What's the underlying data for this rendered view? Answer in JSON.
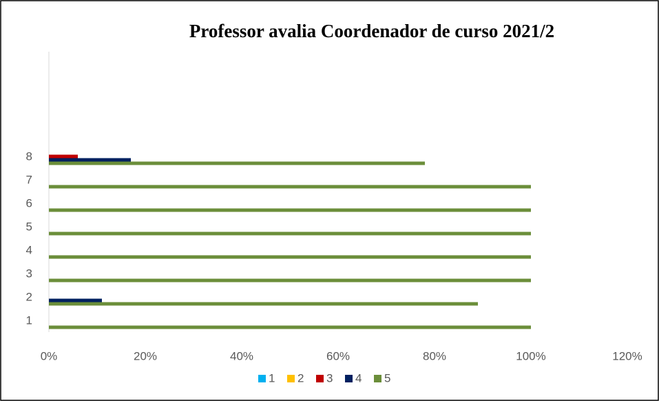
{
  "chart_data": {
    "type": "hbar",
    "title": "Professor avalia Coordenador de curso 2021/2",
    "categories": [
      "1",
      "2",
      "3",
      "4",
      "5",
      "6",
      "7",
      "8"
    ],
    "series": [
      {
        "name": "1",
        "color": "#00b0f0",
        "values": [
          0,
          0,
          0,
          0,
          0,
          0,
          0,
          0
        ]
      },
      {
        "name": "2",
        "color": "#ffc000",
        "values": [
          0,
          0,
          0,
          0,
          0,
          0,
          0,
          0
        ]
      },
      {
        "name": "3",
        "color": "#c00000",
        "values": [
          0,
          0,
          0,
          0,
          0,
          0,
          0,
          6
        ]
      },
      {
        "name": "4",
        "color": "#002060",
        "values": [
          0,
          11,
          0,
          0,
          0,
          0,
          0,
          17
        ]
      },
      {
        "name": "5",
        "color": "#6b8e3a",
        "values": [
          100,
          89,
          100,
          100,
          100,
          100,
          100,
          78
        ]
      }
    ],
    "xlim": [
      0,
      120
    ],
    "xticks": [
      {
        "value": 0,
        "label": "0%"
      },
      {
        "value": 20,
        "label": "20%"
      },
      {
        "value": 40,
        "label": "40%"
      },
      {
        "value": 60,
        "label": "60%"
      },
      {
        "value": 80,
        "label": "80%"
      },
      {
        "value": 100,
        "label": "100%"
      },
      {
        "value": 120,
        "label": "120%"
      }
    ],
    "legend": "bottom",
    "grid": false
  }
}
